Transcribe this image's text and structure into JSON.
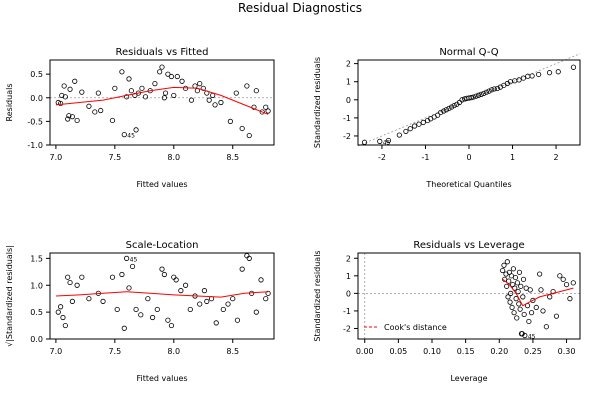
{
  "figure": {
    "title": "Residual Diagnostics"
  },
  "colors": {
    "points": "#000000",
    "smooth": "#ff0000",
    "reference": "#999999",
    "cooks": "#ff0000"
  },
  "chart_data": [
    {
      "type": "scatter",
      "title": "Residuals vs Fitted",
      "xlabel": "Fitted values",
      "ylabel": "Residuals",
      "xlim": [
        6.95,
        8.85
      ],
      "ylim": [
        -1.0,
        0.8
      ],
      "xticks": [
        7.0,
        7.5,
        8.0,
        8.5
      ],
      "yticks": [
        -1.0,
        -0.5,
        0.0,
        0.5
      ],
      "points": [
        [
          7.02,
          -0.1
        ],
        [
          7.04,
          -0.12
        ],
        [
          7.05,
          0.05
        ],
        [
          7.07,
          0.25
        ],
        [
          7.08,
          0.02
        ],
        [
          7.1,
          -0.45
        ],
        [
          7.11,
          -0.38
        ],
        [
          7.12,
          0.18
        ],
        [
          7.14,
          -0.4
        ],
        [
          7.16,
          0.35
        ],
        [
          7.18,
          -0.48
        ],
        [
          7.22,
          0.12
        ],
        [
          7.28,
          -0.18
        ],
        [
          7.33,
          -0.3
        ],
        [
          7.36,
          0.1
        ],
        [
          7.38,
          -0.27
        ],
        [
          7.48,
          -0.48
        ],
        [
          7.5,
          0.2
        ],
        [
          7.56,
          0.55
        ],
        [
          7.58,
          -0.78
        ],
        [
          7.6,
          0.02
        ],
        [
          7.62,
          0.4
        ],
        [
          7.64,
          0.15
        ],
        [
          7.67,
          0.05
        ],
        [
          7.68,
          -0.68
        ],
        [
          7.7,
          0.1
        ],
        [
          7.73,
          0.2
        ],
        [
          7.76,
          0.02
        ],
        [
          7.8,
          0.15
        ],
        [
          7.84,
          0.3
        ],
        [
          7.88,
          0.55
        ],
        [
          7.9,
          0.65
        ],
        [
          7.92,
          0.0
        ],
        [
          7.93,
          0.1
        ],
        [
          7.95,
          0.5
        ],
        [
          7.98,
          0.45
        ],
        [
          8.0,
          0.05
        ],
        [
          8.03,
          0.45
        ],
        [
          8.07,
          0.35
        ],
        [
          8.1,
          0.2
        ],
        [
          8.15,
          -0.05
        ],
        [
          8.18,
          0.25
        ],
        [
          8.2,
          0.15
        ],
        [
          8.22,
          0.3
        ],
        [
          8.25,
          0.2
        ],
        [
          8.28,
          0.1
        ],
        [
          8.3,
          -0.05
        ],
        [
          8.33,
          0.05
        ],
        [
          8.35,
          -0.15
        ],
        [
          8.4,
          -0.1
        ],
        [
          8.48,
          -0.5
        ],
        [
          8.53,
          0.1
        ],
        [
          8.58,
          -0.65
        ],
        [
          8.62,
          0.25
        ],
        [
          8.64,
          -0.8
        ],
        [
          8.68,
          -0.2
        ],
        [
          8.7,
          0.15
        ],
        [
          8.75,
          -0.3
        ],
        [
          8.78,
          -0.2
        ],
        [
          8.8,
          -0.28
        ]
      ],
      "smooth": [
        [
          7.0,
          -0.15
        ],
        [
          7.2,
          -0.1
        ],
        [
          7.4,
          -0.05
        ],
        [
          7.6,
          0.05
        ],
        [
          7.8,
          0.15
        ],
        [
          8.0,
          0.22
        ],
        [
          8.2,
          0.2
        ],
        [
          8.4,
          0.05
        ],
        [
          8.6,
          -0.15
        ],
        [
          8.8,
          -0.35
        ]
      ],
      "reference_line": {
        "y": 0
      },
      "annotations": [
        {
          "label": "45",
          "x": 7.58,
          "y": -0.78
        }
      ]
    },
    {
      "type": "scatter",
      "title": "Normal Q-Q",
      "xlabel": "Theoretical Quantiles",
      "ylabel": "Standardized residuals",
      "xlim": [
        -2.55,
        2.55
      ],
      "ylim": [
        -2.5,
        2.2
      ],
      "xticks": [
        -2,
        -1,
        0,
        1,
        2
      ],
      "yticks": [
        -2,
        -1,
        0,
        1,
        2
      ],
      "points": [
        [
          -2.4,
          -2.35
        ],
        [
          -2.05,
          -2.3
        ],
        [
          -1.85,
          -2.25
        ],
        [
          -1.6,
          -1.95
        ],
        [
          -1.45,
          -1.75
        ],
        [
          -1.35,
          -1.6
        ],
        [
          -1.25,
          -1.45
        ],
        [
          -1.15,
          -1.35
        ],
        [
          -1.05,
          -1.25
        ],
        [
          -0.95,
          -1.15
        ],
        [
          -0.88,
          -1.05
        ],
        [
          -0.8,
          -0.95
        ],
        [
          -0.72,
          -0.85
        ],
        [
          -0.65,
          -0.7
        ],
        [
          -0.58,
          -0.62
        ],
        [
          -0.52,
          -0.55
        ],
        [
          -0.46,
          -0.48
        ],
        [
          -0.4,
          -0.4
        ],
        [
          -0.34,
          -0.32
        ],
        [
          -0.28,
          -0.25
        ],
        [
          -0.22,
          -0.15
        ],
        [
          -0.16,
          0.0
        ],
        [
          -0.1,
          0.05
        ],
        [
          -0.05,
          0.08
        ],
        [
          0.0,
          0.1
        ],
        [
          0.05,
          0.12
        ],
        [
          0.1,
          0.15
        ],
        [
          0.16,
          0.2
        ],
        [
          0.22,
          0.25
        ],
        [
          0.28,
          0.3
        ],
        [
          0.34,
          0.35
        ],
        [
          0.4,
          0.42
        ],
        [
          0.46,
          0.48
        ],
        [
          0.52,
          0.55
        ],
        [
          0.58,
          0.6
        ],
        [
          0.65,
          0.62
        ],
        [
          0.72,
          0.7
        ],
        [
          0.8,
          0.8
        ],
        [
          0.88,
          0.9
        ],
        [
          0.95,
          1.0
        ],
        [
          1.05,
          1.05
        ],
        [
          1.15,
          1.1
        ],
        [
          1.25,
          1.2
        ],
        [
          1.35,
          1.3
        ],
        [
          1.45,
          1.32
        ],
        [
          1.6,
          1.4
        ],
        [
          1.85,
          1.5
        ],
        [
          2.05,
          1.55
        ],
        [
          2.4,
          1.8
        ]
      ],
      "reference_line": {
        "slope": 1,
        "intercept": 0
      },
      "annotations": [
        {
          "label": "45",
          "x": -2.05,
          "y": -2.3
        }
      ]
    },
    {
      "type": "scatter",
      "title": "Scale-Location",
      "xlabel": "Fitted values",
      "ylabel": "√|Standardized residuals|",
      "xlim": [
        6.95,
        8.85
      ],
      "ylim": [
        0.0,
        1.6
      ],
      "xticks": [
        7.0,
        7.5,
        8.0,
        8.5
      ],
      "yticks": [
        0.0,
        0.5,
        1.0,
        1.5
      ],
      "points": [
        [
          7.02,
          0.5
        ],
        [
          7.04,
          0.6
        ],
        [
          7.06,
          0.4
        ],
        [
          7.08,
          0.25
        ],
        [
          7.1,
          1.15
        ],
        [
          7.12,
          1.05
        ],
        [
          7.14,
          0.7
        ],
        [
          7.18,
          1.0
        ],
        [
          7.22,
          1.15
        ],
        [
          7.28,
          0.75
        ],
        [
          7.36,
          0.85
        ],
        [
          7.4,
          0.7
        ],
        [
          7.48,
          1.15
        ],
        [
          7.52,
          0.55
        ],
        [
          7.56,
          1.2
        ],
        [
          7.58,
          0.2
        ],
        [
          7.6,
          1.5
        ],
        [
          7.62,
          0.95
        ],
        [
          7.65,
          1.35
        ],
        [
          7.68,
          0.55
        ],
        [
          7.72,
          0.45
        ],
        [
          7.78,
          0.75
        ],
        [
          7.82,
          0.4
        ],
        [
          7.86,
          0.55
        ],
        [
          7.9,
          1.3
        ],
        [
          7.92,
          1.2
        ],
        [
          7.95,
          0.35
        ],
        [
          7.98,
          0.25
        ],
        [
          8.0,
          1.15
        ],
        [
          8.02,
          1.1
        ],
        [
          8.06,
          0.9
        ],
        [
          8.1,
          1.0
        ],
        [
          8.14,
          0.55
        ],
        [
          8.18,
          0.8
        ],
        [
          8.22,
          0.65
        ],
        [
          8.26,
          0.9
        ],
        [
          8.28,
          0.7
        ],
        [
          8.32,
          0.75
        ],
        [
          8.36,
          0.3
        ],
        [
          8.42,
          0.55
        ],
        [
          8.46,
          0.65
        ],
        [
          8.5,
          0.75
        ],
        [
          8.54,
          0.35
        ],
        [
          8.58,
          1.3
        ],
        [
          8.62,
          1.55
        ],
        [
          8.64,
          1.5
        ],
        [
          8.66,
          0.85
        ],
        [
          8.7,
          0.5
        ],
        [
          8.74,
          1.1
        ],
        [
          8.78,
          0.75
        ],
        [
          8.8,
          0.85
        ]
      ],
      "smooth": [
        [
          7.0,
          0.8
        ],
        [
          7.2,
          0.82
        ],
        [
          7.4,
          0.85
        ],
        [
          7.6,
          0.88
        ],
        [
          7.8,
          0.85
        ],
        [
          8.0,
          0.82
        ],
        [
          8.2,
          0.8
        ],
        [
          8.4,
          0.78
        ],
        [
          8.6,
          0.85
        ],
        [
          8.8,
          0.88
        ]
      ],
      "annotations": [
        {
          "label": "45",
          "x": 7.6,
          "y": 1.5
        }
      ]
    },
    {
      "type": "scatter",
      "title": "Residuals vs Leverage",
      "xlabel": "Leverage",
      "ylabel": "Standardized residuals",
      "xlim": [
        -0.01,
        0.32
      ],
      "ylim": [
        -2.6,
        2.3
      ],
      "xticks": [
        0.0,
        0.05,
        0.1,
        0.15,
        0.2,
        0.25,
        0.3
      ],
      "yticks": [
        -2,
        -1,
        0,
        1,
        2
      ],
      "points": [
        [
          0.205,
          1.3
        ],
        [
          0.207,
          1.6
        ],
        [
          0.208,
          0.8
        ],
        [
          0.21,
          1.1
        ],
        [
          0.211,
          0.4
        ],
        [
          0.212,
          1.8
        ],
        [
          0.213,
          -0.2
        ],
        [
          0.214,
          0.7
        ],
        [
          0.215,
          1.2
        ],
        [
          0.216,
          -0.5
        ],
        [
          0.217,
          0.0
        ],
        [
          0.218,
          1.0
        ],
        [
          0.219,
          -0.8
        ],
        [
          0.22,
          0.5
        ],
        [
          0.221,
          1.4
        ],
        [
          0.222,
          -1.1
        ],
        [
          0.223,
          0.3
        ],
        [
          0.224,
          0.9
        ],
        [
          0.225,
          -0.3
        ],
        [
          0.226,
          -1.4
        ],
        [
          0.227,
          0.6
        ],
        [
          0.228,
          0.1
        ],
        [
          0.229,
          -0.6
        ],
        [
          0.23,
          1.2
        ],
        [
          0.231,
          -0.9
        ],
        [
          0.232,
          0.4
        ],
        [
          0.233,
          -2.3
        ],
        [
          0.234,
          -2.3
        ],
        [
          0.235,
          -0.2
        ],
        [
          0.236,
          0.8
        ],
        [
          0.237,
          -1.2
        ],
        [
          0.238,
          -2.4
        ],
        [
          0.24,
          0.3
        ],
        [
          0.242,
          -0.7
        ],
        [
          0.244,
          -1.6
        ],
        [
          0.246,
          0.2
        ],
        [
          0.248,
          -1.1
        ],
        [
          0.25,
          -0.4
        ],
        [
          0.255,
          -0.8
        ],
        [
          0.26,
          1.1
        ],
        [
          0.262,
          0.2
        ],
        [
          0.265,
          -1.0
        ],
        [
          0.27,
          -1.9
        ],
        [
          0.275,
          -0.2
        ],
        [
          0.28,
          0.1
        ],
        [
          0.285,
          -1.3
        ],
        [
          0.29,
          1.0
        ],
        [
          0.295,
          0.8
        ],
        [
          0.3,
          0.5
        ],
        [
          0.305,
          -0.3
        ],
        [
          0.31,
          0.6
        ]
      ],
      "smooth": [
        [
          0.205,
          0.8
        ],
        [
          0.215,
          0.5
        ],
        [
          0.225,
          0.0
        ],
        [
          0.235,
          -0.7
        ],
        [
          0.245,
          -0.5
        ],
        [
          0.26,
          -0.2
        ],
        [
          0.28,
          0.0
        ],
        [
          0.31,
          0.3
        ]
      ],
      "reference_line": {
        "y": 0,
        "x": 0
      },
      "annotations": [
        {
          "label": "45",
          "x": 0.238,
          "y": -2.4
        }
      ],
      "legend": {
        "position": "bottom-left",
        "entries": [
          "Cook's distance"
        ]
      }
    }
  ]
}
